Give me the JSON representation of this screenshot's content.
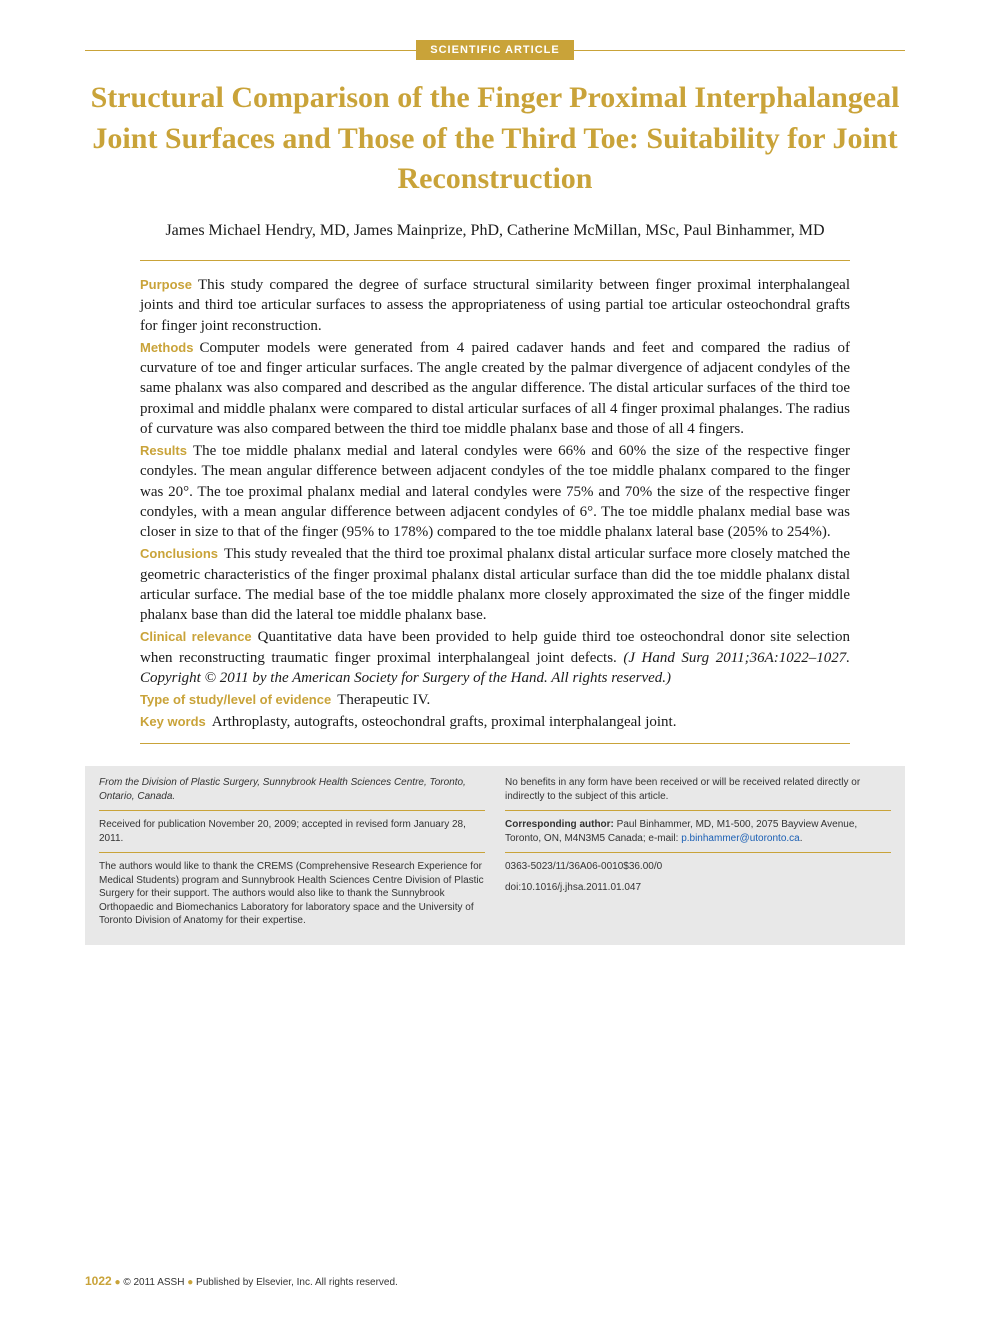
{
  "badge": "SCIENTIFIC ARTICLE",
  "title": "Structural Comparison of the Finger Proximal Interphalangeal Joint Surfaces and Those of the Third Toe: Suitability for Joint Reconstruction",
  "authors": "James Michael Hendry, MD, James Mainprize, PhD, Catherine McMillan, MSc, Paul Binhammer, MD",
  "abstract": {
    "purpose": {
      "label": "Purpose",
      "text": "This study compared the degree of surface structural similarity between finger proximal interphalangeal joints and third toe articular surfaces to assess the appropriateness of using partial toe articular osteochondral grafts for finger joint reconstruction."
    },
    "methods": {
      "label": "Methods",
      "text": "Computer models were generated from 4 paired cadaver hands and feet and compared the radius of curvature of toe and finger articular surfaces. The angle created by the palmar divergence of adjacent condyles of the same phalanx was also compared and described as the angular difference. The distal articular surfaces of the third toe proximal and middle phalanx were compared to distal articular surfaces of all 4 finger proximal phalanges. The radius of curvature was also compared between the third toe middle phalanx base and those of all 4 fingers."
    },
    "results": {
      "label": "Results",
      "text": "The toe middle phalanx medial and lateral condyles were 66% and 60% the size of the respective finger condyles. The mean angular difference between adjacent condyles of the toe middle phalanx compared to the finger was 20°. The toe proximal phalanx medial and lateral condyles were 75% and 70% the size of the respective finger condyles, with a mean angular difference between adjacent condyles of 6°. The toe middle phalanx medial base was closer in size to that of the finger (95% to 178%) compared to the toe middle phalanx lateral base (205% to 254%)."
    },
    "conclusions": {
      "label": "Conclusions",
      "text": "This study revealed that the third toe proximal phalanx distal articular surface more closely matched the geometric characteristics of the finger proximal phalanx distal articular surface than did the toe middle phalanx distal articular surface. The medial base of the toe middle phalanx more closely approximated the size of the finger middle phalanx base than did the lateral toe middle phalanx base."
    },
    "clinical": {
      "label": "Clinical relevance",
      "text": "Quantitative data have been provided to help guide third toe osteochondral donor site selection when reconstructing traumatic finger proximal interphalangeal joint defects.",
      "citation": "(J Hand Surg 2011;36A:1022–1027. Copyright © 2011 by the American Society for Surgery of the Hand. All rights reserved.)"
    },
    "evidence": {
      "label": "Type of study/level of evidence",
      "text": "Therapeutic IV."
    },
    "keywords": {
      "label": "Key words",
      "text": "Arthroplasty, autografts, osteochondral grafts, proximal interphalangeal joint."
    }
  },
  "footer": {
    "left": {
      "affiliation": "From the Division of Plastic Surgery, Sunnybrook Health Sciences Centre, Toronto, Ontario, Canada.",
      "received": "Received for publication November 20, 2009; accepted in revised form January 28, 2011.",
      "thanks": "The authors would like to thank the CREMS (Comprehensive Research Experience for Medical Students) program and Sunnybrook Health Sciences Centre Division of Plastic Surgery for their support. The authors would also like to thank the Sunnybrook Orthopaedic and Biomechanics Laboratory for laboratory space and the University of Toronto Division of Anatomy for their expertise."
    },
    "right": {
      "benefits": "No benefits in any form have been received or will be received related directly or indirectly to the subject of this article.",
      "corresponding_label": "Corresponding author:",
      "corresponding_text": " Paul Binhammer, MD, M1-500, 2075 Bayview Avenue, Toronto, ON, M4N3M5 Canada; e-mail: ",
      "email": "p.binhammer@utoronto.ca",
      "issn": "0363-5023/11/36A06-0010$36.00/0",
      "doi": "doi:10.1016/j.jhsa.2011.01.047"
    }
  },
  "page": {
    "number": "1022",
    "copyright": "© 2011 ASSH",
    "publisher": "Published by Elsevier, Inc. All rights reserved."
  },
  "colors": {
    "accent": "#c9a339",
    "text": "#1a1a1a",
    "footer_bg": "#e8e8e8",
    "link": "#1a5fb4"
  }
}
